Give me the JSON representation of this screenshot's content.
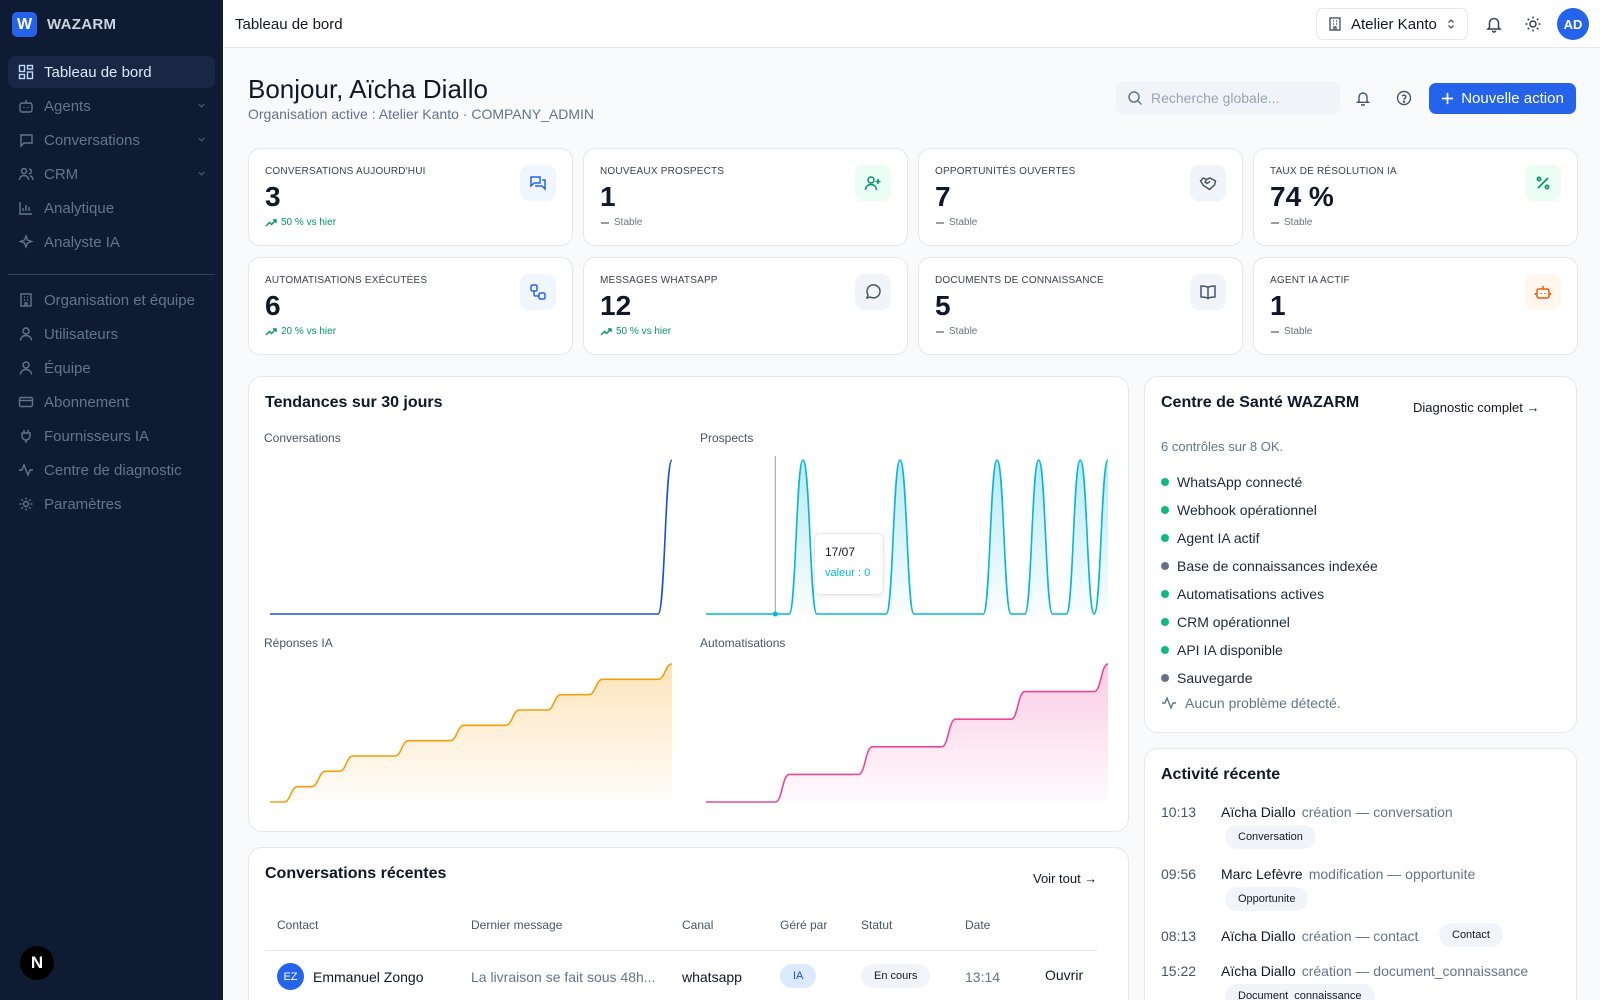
{
  "brand": {
    "logo_letter": "W",
    "name": "WAZARM"
  },
  "sidebar": {
    "items": [
      {
        "label": "Tableau de bord",
        "icon": "grid-icon"
      },
      {
        "label": "Agents",
        "icon": "bot-icon"
      },
      {
        "label": "Conversations",
        "icon": "message-icon"
      },
      {
        "label": "CRM",
        "icon": "users-icon"
      },
      {
        "label": "Analytique",
        "icon": "bar-chart-icon"
      },
      {
        "label": "Analyste IA",
        "icon": "sparkles-icon"
      },
      {
        "label": "Organisation et équipe",
        "icon": "building-icon"
      },
      {
        "label": "Utilisateurs",
        "icon": "user-icon"
      },
      {
        "label": "Équipe",
        "icon": "team-icon"
      },
      {
        "label": "Abonnement",
        "icon": "card-icon"
      },
      {
        "label": "Fournisseurs IA",
        "icon": "plug-icon"
      },
      {
        "label": "Centre de diagnostic",
        "icon": "activity-icon"
      },
      {
        "label": "Paramètres",
        "icon": "gear-icon"
      }
    ],
    "bottom_badge": "N"
  },
  "topbar": {
    "breadcrumb": "Tableau de bord",
    "org_name": "Atelier Kanto",
    "avatar_initials": "AD"
  },
  "header": {
    "greeting": "Bonjour, Aïcha Diallo",
    "subtitle": "Organisation active : Atelier Kanto · COMPANY_ADMIN",
    "search_placeholder": "Recherche globale...",
    "primary_action": "Nouvelle action"
  },
  "kpis": [
    {
      "label": "CONVERSATIONS AUJOURD'HUI",
      "value": "3",
      "trend": "50 % vs hier",
      "icon": "chat-icon",
      "accent": "#2563eb"
    },
    {
      "label": "NOUVEAUX PROSPECTS",
      "value": "1",
      "trend": "Stable",
      "icon": "user-plus-icon",
      "accent": "#059669"
    },
    {
      "label": "OPPORTUNITÉS OUVERTES",
      "value": "7",
      "trend": "Stable",
      "icon": "handshake-icon",
      "accent": "#475569"
    },
    {
      "label": "TAUX DE RÉSOLUTION IA",
      "value": "74 %",
      "trend": "Stable",
      "icon": "percent-icon",
      "accent": "#059669"
    },
    {
      "label": "AUTOMATISATIONS EXÉCUTÉES",
      "value": "6",
      "trend": "20 % vs hier",
      "icon": "workflow-icon",
      "accent": "#2563eb"
    },
    {
      "label": "MESSAGES WHATSAPP",
      "value": "12",
      "trend": "50 % vs hier",
      "icon": "message-circle-icon",
      "accent": "#475569"
    },
    {
      "label": "DOCUMENTS DE CONNAISSANCE",
      "value": "5",
      "trend": "Stable",
      "icon": "book-icon",
      "accent": "#475569"
    },
    {
      "label": "AGENT IA ACTIF",
      "value": "1",
      "trend": "Stable",
      "icon": "bot-icon",
      "accent": "#ea580c"
    }
  ],
  "trends": {
    "title": "Tendances sur 30 jours",
    "tooltip": {
      "date": "17/07",
      "value": "valeur : 0"
    }
  },
  "chart_data": [
    {
      "type": "line",
      "title": "Conversations",
      "color": "#1d4ed8",
      "values": [
        0,
        0,
        0,
        0,
        0,
        0,
        0,
        0,
        0,
        0,
        0,
        0,
        0,
        0,
        0,
        0,
        0,
        0,
        0,
        0,
        0,
        0,
        0,
        0,
        0,
        0,
        0,
        0,
        0,
        3
      ]
    },
    {
      "type": "area",
      "title": "Prospects",
      "color": "#06b6d4",
      "values": [
        0,
        0,
        0,
        0,
        0,
        0,
        0,
        1,
        0,
        0,
        0,
        0,
        0,
        0,
        1,
        0,
        0,
        0,
        0,
        0,
        0,
        1,
        0,
        0,
        1,
        0,
        0,
        1,
        0,
        1
      ]
    },
    {
      "type": "area",
      "title": "Réponses IA",
      "color": "#f59e0b",
      "values": [
        0,
        0,
        1,
        1,
        2,
        2,
        3,
        3,
        3,
        3,
        4,
        4,
        4,
        4,
        5,
        5,
        5,
        5,
        6,
        6,
        6,
        7,
        7,
        7,
        8,
        8,
        8,
        8,
        8,
        9
      ]
    },
    {
      "type": "area",
      "title": "Automatisations",
      "color": "#ec4899",
      "values": [
        0,
        0,
        0,
        0,
        0,
        0,
        1,
        1,
        1,
        1,
        1,
        1,
        2,
        2,
        2,
        2,
        2,
        2,
        3,
        3,
        3,
        3,
        3,
        4,
        4,
        4,
        4,
        4,
        4,
        5
      ]
    }
  ],
  "health": {
    "title": "Centre de Santé WAZARM",
    "link": "Diagnostic complet →",
    "summary": "6 contrôles sur 8 OK.",
    "items": [
      {
        "label": "WhatsApp connecté",
        "status": "ok"
      },
      {
        "label": "Webhook opérationnel",
        "status": "ok"
      },
      {
        "label": "Agent IA actif",
        "status": "ok"
      },
      {
        "label": "Base de connaissances indexée",
        "status": "neutral"
      },
      {
        "label": "Automatisations actives",
        "status": "ok"
      },
      {
        "label": "CRM opérationnel",
        "status": "ok"
      },
      {
        "label": "API IA disponible",
        "status": "ok"
      },
      {
        "label": "Sauvegarde",
        "status": "neutral"
      }
    ],
    "footer": "Aucun problème détecté.",
    "colors": {
      "ok": "#10b981",
      "neutral": "#64748b"
    }
  },
  "activity": {
    "title": "Activité récente",
    "items": [
      {
        "time": "10:13",
        "user": "Aïcha Diallo",
        "action": "création — conversation",
        "tag": "Conversation"
      },
      {
        "time": "09:56",
        "user": "Marc Lefèvre",
        "action": "modification — opportunite",
        "tag": "Opportunite"
      },
      {
        "time": "08:13",
        "user": "Aïcha Diallo",
        "action": "création — contact",
        "tag": "Contact"
      },
      {
        "time": "15:22",
        "user": "Aïcha Diallo",
        "action": "création — document_connaissance",
        "tag": "Document_connaissance"
      }
    ]
  },
  "recent": {
    "title": "Conversations récentes",
    "link": "Voir tout →",
    "columns": [
      "Contact",
      "Dernier message",
      "Canal",
      "Géré par",
      "Statut",
      "Date"
    ],
    "rows": [
      {
        "initials": "EZ",
        "contact": "Emmanuel Zongo",
        "message": "La livraison se fait sous 48h...",
        "channel": "whatsapp",
        "handled_by": "IA",
        "status": "En cours",
        "date": "13:14",
        "action": "Ouvrir"
      }
    ]
  }
}
